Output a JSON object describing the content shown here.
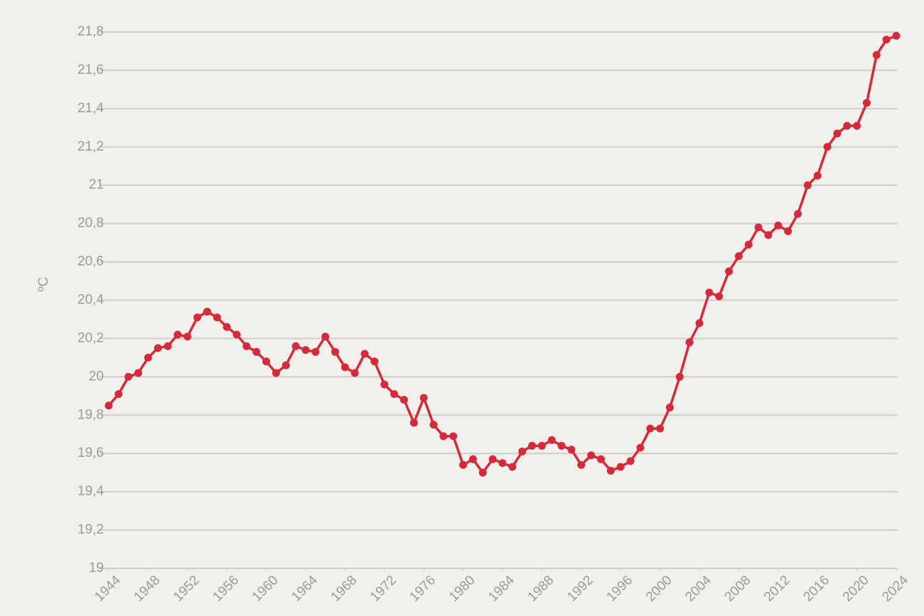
{
  "chart_data": {
    "type": "line",
    "y_label": "ºC",
    "x": [
      1944,
      1945,
      1946,
      1947,
      1948,
      1949,
      1950,
      1951,
      1952,
      1953,
      1954,
      1955,
      1956,
      1957,
      1958,
      1959,
      1960,
      1961,
      1962,
      1963,
      1964,
      1965,
      1966,
      1967,
      1968,
      1969,
      1970,
      1971,
      1972,
      1973,
      1974,
      1975,
      1976,
      1977,
      1978,
      1979,
      1980,
      1981,
      1982,
      1983,
      1984,
      1985,
      1986,
      1987,
      1988,
      1989,
      1990,
      1991,
      1992,
      1993,
      1994,
      1995,
      1996,
      1997,
      1998,
      1999,
      2000,
      2001,
      2002,
      2003,
      2004,
      2005,
      2006,
      2007,
      2008,
      2009,
      2010,
      2011,
      2012,
      2013,
      2014,
      2015,
      2016,
      2017,
      2018,
      2019,
      2020,
      2021,
      2022,
      2023,
      2024
    ],
    "series": [
      {
        "color": "#d42a3a",
        "values": [
          19.85,
          19.91,
          20.0,
          20.02,
          20.1,
          20.15,
          20.16,
          20.22,
          20.21,
          20.31,
          20.34,
          20.31,
          20.26,
          20.22,
          20.16,
          20.13,
          20.08,
          20.02,
          20.06,
          20.16,
          20.14,
          20.13,
          20.21,
          20.13,
          20.05,
          20.02,
          20.12,
          20.08,
          19.96,
          19.91,
          19.88,
          19.76,
          19.89,
          19.75,
          19.69,
          19.69,
          19.54,
          19.57,
          19.5,
          19.57,
          19.55,
          19.53,
          19.61,
          19.64,
          19.64,
          19.67,
          19.64,
          19.62,
          19.54,
          19.59,
          19.57,
          19.51,
          19.53,
          19.56,
          19.63,
          19.73,
          19.73,
          19.84,
          20.0,
          20.18,
          20.28,
          20.44,
          20.42,
          20.55,
          20.63,
          20.69,
          20.78,
          20.74,
          20.79,
          20.76,
          20.85,
          21.0,
          21.05,
          21.2,
          21.27,
          21.31,
          21.31,
          21.43,
          21.68,
          21.76,
          21.78
        ]
      }
    ],
    "xlim": [
      1944,
      2024
    ],
    "xticks": [
      1944,
      1948,
      1952,
      1956,
      1960,
      1964,
      1968,
      1972,
      1976,
      1980,
      1984,
      1988,
      1992,
      1996,
      2000,
      2004,
      2008,
      2012,
      2016,
      2020,
      2024
    ],
    "ylim": [
      19,
      21.8
    ],
    "yticks": [
      19,
      {
        "value": 19.2,
        "label": "19,2"
      },
      {
        "value": 19.4,
        "label": "19,4"
      },
      {
        "value": 19.6,
        "label": "19,6"
      },
      {
        "value": 19.8,
        "label": "19,8"
      },
      20,
      {
        "value": 20.2,
        "label": "20,2"
      },
      {
        "value": 20.4,
        "label": "20,4"
      },
      {
        "value": 20.6,
        "label": "20,6"
      },
      {
        "value": 20.8,
        "label": "20,8"
      },
      21,
      {
        "value": 21.2,
        "label": "21,2"
      },
      {
        "value": 21.4,
        "label": "21,4"
      },
      {
        "value": 21.6,
        "label": "21,6"
      },
      {
        "value": 21.8,
        "label": "21,8"
      }
    ],
    "grid": true
  }
}
